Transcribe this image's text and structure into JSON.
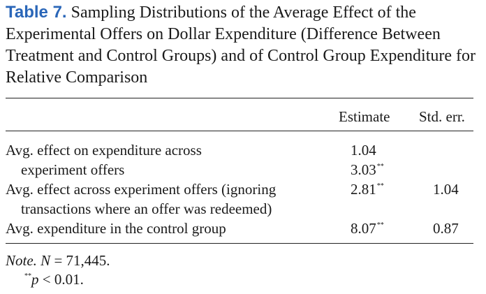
{
  "table": {
    "label": "Table 7.",
    "title": "Sampling Distributions of the Average Effect of the Experimental Offers on Dollar Expenditure (Difference Between Treatment and Control Groups) and of Control Group Expenditure for Relative Comparison",
    "columns": [
      "Estimate",
      "Std. err."
    ],
    "rows": [
      {
        "line1": "Avg. effect on expenditure across",
        "line2": "experiment offers",
        "estimate_line1": "1.04",
        "estimate_line2": "3.03",
        "estimate_line2_sig": "**",
        "stderr": ""
      },
      {
        "line1": "Avg. effect across experiment offers (ignoring",
        "line2": "transactions where an offer was redeemed)",
        "estimate": "2.81",
        "estimate_sig": "**",
        "stderr": "1.04"
      },
      {
        "line1": "Avg. expenditure in the control group",
        "estimate": "8.07",
        "estimate_sig": "**",
        "stderr": "0.87"
      }
    ]
  },
  "note": {
    "label": "Note.",
    "n_symbol": "N",
    "n_value": " = 71,445.",
    "sig_marker": "**",
    "sig_text": "p",
    "sig_rest": " < 0.01."
  },
  "colors": {
    "label": "#2a66b8",
    "text": "#1a1a1a",
    "rule": "#222222"
  }
}
